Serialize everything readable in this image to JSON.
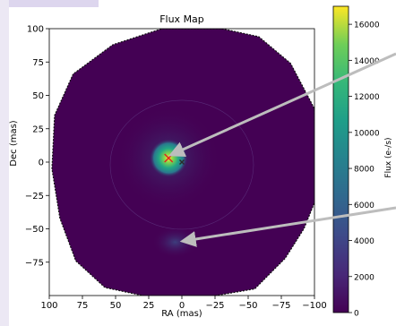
{
  "chart_data": {
    "type": "heatmap",
    "title": "Flux Map",
    "xlabel": "RA (mas)",
    "ylabel": "Dec (mas)",
    "xlim": [
      100,
      -100
    ],
    "ylim": [
      -100,
      100
    ],
    "x_ticks": [
      "100",
      "75",
      "50",
      "25",
      "0",
      "−25",
      "−50",
      "−75",
      "−100"
    ],
    "y_ticks": [
      "100",
      "75",
      "50",
      "25",
      "0",
      "−25",
      "−50",
      "−75"
    ],
    "colorbar": {
      "label": "Flux (e-/s)",
      "range": [
        0,
        17000
      ],
      "ticks": [
        "0",
        "2000",
        "4000",
        "6000",
        "8000",
        "10000",
        "12000",
        "14000",
        "16000"
      ],
      "colormap": "viridis"
    },
    "source_peak": {
      "ra": 10,
      "dec": 3,
      "flux": 16000
    },
    "markers": [
      {
        "name": "red-x",
        "ra": 10,
        "dec": 3,
        "color": "#e32020"
      },
      {
        "name": "dark-x",
        "ra": 0,
        "dec": 0,
        "color": "#2b2b2b"
      }
    ],
    "faint_feature": {
      "ra": 5,
      "dec": -60
    },
    "arrows": [
      {
        "from": "upper-right",
        "to": "source",
        "color": "#bdbdbd"
      },
      {
        "from": "mid-right",
        "to": "faint_feature",
        "color": "#bdbdbd"
      }
    ]
  }
}
